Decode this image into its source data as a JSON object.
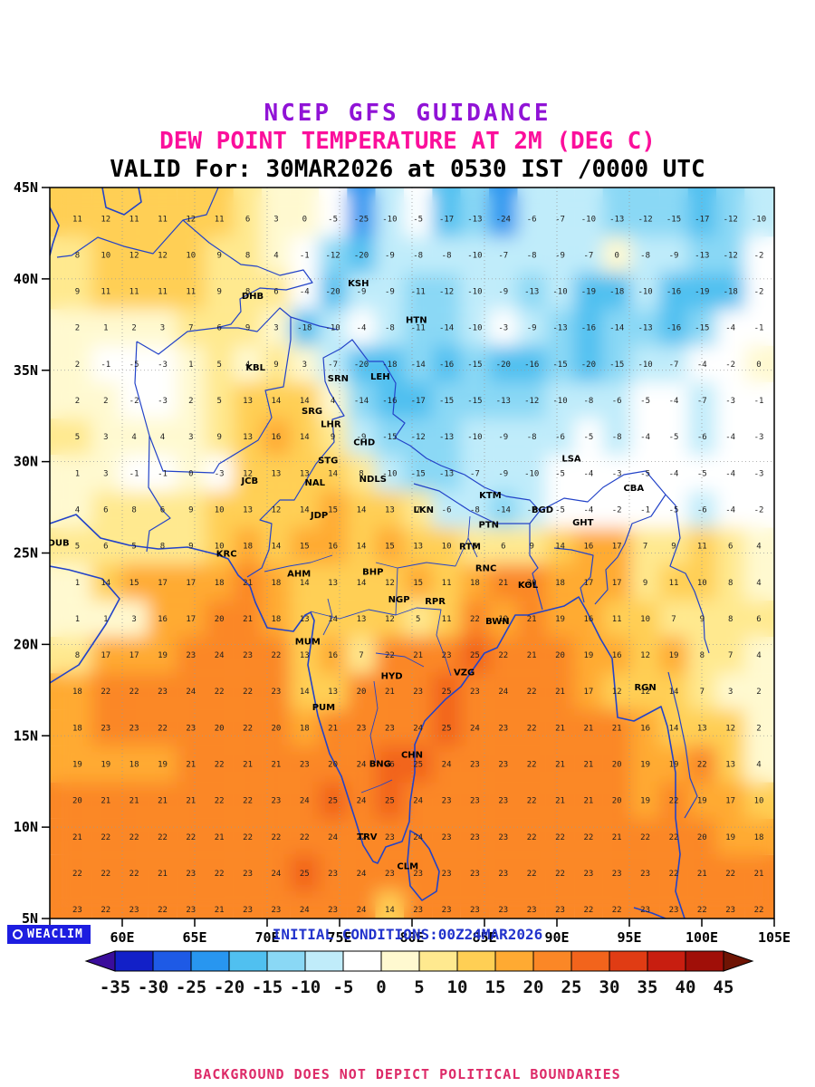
{
  "titles": {
    "line1": "NCEP GFS GUIDANCE",
    "line1_color": "#9013d6",
    "line2": "DEW POINT TEMPERATURE AT 2M (DEG C)",
    "line2_color": "#fb0f9b",
    "line3": "VALID For: 30MAR2026 at 0530 IST /0000 UTC",
    "line3_color": "#000000"
  },
  "footer": {
    "logo_text": "WEACLIM",
    "logo_bg": "#1d1de0",
    "initial_conditions": "INITIAL CONDITIONS:00Z24MAR2026",
    "initial_conditions_color": "#2233cc",
    "disclaimer": "BACKGROUND DOES NOT DEPICT POLITICAL BOUNDARIES",
    "disclaimer_color": "#dd2a68"
  },
  "axes": {
    "lon_ticks": [
      "55E",
      "60E",
      "65E",
      "70E",
      "75E",
      "80E",
      "85E",
      "90E",
      "95E",
      "100E",
      "105E"
    ],
    "lat_ticks": [
      "45N",
      "40N",
      "35N",
      "30N",
      "25N",
      "20N",
      "15N",
      "10N",
      "5N"
    ]
  },
  "colorbar": {
    "tick_labels": [
      "-35",
      "-30",
      "-25",
      "-20",
      "-15",
      "-10",
      "-5",
      "0",
      "5",
      "10",
      "15",
      "20",
      "25",
      "30",
      "35",
      "40",
      "45"
    ],
    "segment_colors": [
      "#1220c8",
      "#1e5ae6",
      "#2896f0",
      "#50c0f0",
      "#8ad8f5",
      "#c0ecfa",
      "#ffffff",
      "#fff9d0",
      "#ffe98f",
      "#ffcf54",
      "#ffaa32",
      "#fb8726",
      "#f2641c",
      "#e03c14",
      "#c81e10",
      "#a00f08"
    ],
    "left_arrow_color": "#3a0d9b",
    "right_arrow_color": "#6f1404"
  },
  "map": {
    "grid": {
      "lon_start": 56.9,
      "lon_step": 1.96,
      "lat_start": 43.3,
      "lat_step": -1.99,
      "values": [
        [
          11,
          12,
          11,
          11,
          12,
          11,
          6,
          3,
          0,
          -5,
          -25,
          -10,
          -5,
          -17,
          -13,
          -24,
          -6,
          -7,
          -10,
          -13,
          -12,
          -15,
          -17,
          -12,
          -10
        ],
        [
          8,
          10,
          12,
          12,
          10,
          9,
          8,
          4,
          -1,
          -12,
          -20,
          -9,
          -8,
          -8,
          -10,
          -7,
          -8,
          -9,
          -7,
          0,
          -8,
          -9,
          -13,
          -12,
          -2
        ],
        [
          9,
          11,
          11,
          11,
          11,
          9,
          8,
          6,
          -4,
          -20,
          -9,
          -9,
          -11,
          -12,
          -10,
          -9,
          -13,
          -10,
          -19,
          -18,
          -10,
          -16,
          -19,
          -18,
          -2
        ],
        [
          2,
          1,
          2,
          3,
          7,
          6,
          9,
          3,
          -18,
          -10,
          -4,
          -8,
          -11,
          -14,
          -10,
          -3,
          -9,
          -13,
          -16,
          -14,
          -13,
          -16,
          -15,
          -4,
          -1
        ],
        [
          2,
          -1,
          -5,
          -3,
          1,
          5,
          4,
          9,
          3,
          -7,
          -20,
          -18,
          -14,
          -16,
          -15,
          -20,
          -16,
          -15,
          -20,
          -15,
          -10,
          -7,
          -4,
          -2,
          0
        ],
        [
          2,
          2,
          -2,
          -3,
          2,
          5,
          13,
          14,
          14,
          4,
          -14,
          -16,
          -17,
          -15,
          -15,
          -13,
          -12,
          -10,
          -8,
          -6,
          -5,
          -4,
          -7,
          -3,
          -1
        ],
        [
          5,
          3,
          4,
          4,
          3,
          9,
          13,
          16,
          14,
          9,
          -9,
          -15,
          -12,
          -13,
          -10,
          -9,
          -8,
          -6,
          -5,
          -8,
          -4,
          -5,
          -6,
          -4,
          -3
        ],
        [
          1,
          3,
          -1,
          -1,
          0,
          -3,
          12,
          13,
          13,
          14,
          8,
          -10,
          -15,
          -13,
          -7,
          -9,
          -10,
          -5,
          -4,
          -3,
          -5,
          -4,
          -5,
          -4,
          -3
        ],
        [
          4,
          6,
          8,
          6,
          9,
          10,
          13,
          12,
          14,
          15,
          14,
          13,
          7,
          -6,
          -8,
          -14,
          -7,
          -5,
          -4,
          -2,
          -1,
          -5,
          -6,
          -4,
          -2
        ],
        [
          5,
          6,
          5,
          8,
          9,
          10,
          18,
          14,
          15,
          16,
          14,
          15,
          13,
          10,
          8,
          6,
          9,
          14,
          16,
          17,
          7,
          9,
          11,
          6,
          4
        ],
        [
          1,
          14,
          15,
          17,
          17,
          18,
          21,
          18,
          14,
          13,
          14,
          12,
          15,
          11,
          18,
          21,
          20,
          18,
          17,
          17,
          9,
          11,
          10,
          8,
          4
        ],
        [
          1,
          1,
          3,
          16,
          17,
          20,
          21,
          18,
          13,
          14,
          13,
          12,
          5,
          11,
          22,
          19,
          21,
          19,
          16,
          11,
          10,
          7,
          9,
          8,
          6
        ],
        [
          8,
          17,
          17,
          19,
          23,
          24,
          23,
          22,
          13,
          16,
          7,
          22,
          21,
          23,
          25,
          22,
          21,
          20,
          19,
          16,
          12,
          19,
          8,
          7,
          4
        ],
        [
          18,
          22,
          22,
          23,
          24,
          22,
          22,
          23,
          14,
          13,
          20,
          21,
          23,
          25,
          23,
          24,
          22,
          21,
          17,
          12,
          12,
          14,
          7,
          3,
          2
        ],
        [
          18,
          23,
          23,
          22,
          23,
          20,
          22,
          20,
          18,
          21,
          23,
          23,
          24,
          25,
          24,
          23,
          22,
          21,
          21,
          21,
          16,
          14,
          13,
          12,
          2
        ],
        [
          19,
          19,
          18,
          19,
          21,
          22,
          21,
          21,
          23,
          20,
          24,
          26,
          25,
          24,
          23,
          23,
          22,
          21,
          21,
          20,
          19,
          19,
          22,
          13,
          4
        ],
        [
          20,
          21,
          21,
          21,
          21,
          22,
          22,
          23,
          24,
          25,
          24,
          25,
          24,
          23,
          23,
          23,
          22,
          21,
          21,
          20,
          19,
          22,
          19,
          17,
          10
        ],
        [
          21,
          22,
          22,
          22,
          22,
          21,
          22,
          22,
          22,
          24,
          22,
          23,
          24,
          23,
          23,
          23,
          22,
          22,
          22,
          21,
          22,
          22,
          20,
          19,
          18
        ],
        [
          22,
          22,
          22,
          21,
          23,
          22,
          23,
          24,
          25,
          23,
          24,
          23,
          23,
          23,
          23,
          23,
          22,
          22,
          23,
          23,
          23,
          22,
          21,
          22,
          21
        ],
        [
          23,
          22,
          23,
          22,
          23,
          21,
          23,
          23,
          24,
          23,
          24,
          14,
          23,
          23,
          23,
          23,
          23,
          23,
          22,
          22,
          23,
          23,
          22,
          23,
          22
        ]
      ]
    },
    "cities": [
      {
        "code": "DHB",
        "lon": 69.0,
        "lat": 38.9
      },
      {
        "code": "KSH",
        "lon": 76.3,
        "lat": 39.6
      },
      {
        "code": "HTN",
        "lon": 80.3,
        "lat": 37.6
      },
      {
        "code": "KBL",
        "lon": 69.2,
        "lat": 35.0
      },
      {
        "code": "SRN",
        "lon": 74.9,
        "lat": 34.4
      },
      {
        "code": "LEH",
        "lon": 77.8,
        "lat": 34.5
      },
      {
        "code": "SRG",
        "lon": 73.1,
        "lat": 32.6
      },
      {
        "code": "LHR",
        "lon": 74.4,
        "lat": 31.9
      },
      {
        "code": "CHD",
        "lon": 76.7,
        "lat": 30.9
      },
      {
        "code": "STG",
        "lon": 74.2,
        "lat": 29.9
      },
      {
        "code": "NDLS",
        "lon": 77.3,
        "lat": 28.9
      },
      {
        "code": "JCB",
        "lon": 68.8,
        "lat": 28.8
      },
      {
        "code": "NAL",
        "lon": 73.3,
        "lat": 28.7
      },
      {
        "code": "KTM",
        "lon": 85.4,
        "lat": 28.0
      },
      {
        "code": "LSA",
        "lon": 91.0,
        "lat": 30.0
      },
      {
        "code": "CBA",
        "lon": 95.3,
        "lat": 28.4
      },
      {
        "code": "GHT",
        "lon": 91.8,
        "lat": 26.5
      },
      {
        "code": "BGD",
        "lon": 89.0,
        "lat": 27.2
      },
      {
        "code": "LKN",
        "lon": 80.8,
        "lat": 27.2
      },
      {
        "code": "JDP",
        "lon": 73.6,
        "lat": 26.9
      },
      {
        "code": "PTN",
        "lon": 85.3,
        "lat": 26.4
      },
      {
        "code": "DUB",
        "lon": 55.6,
        "lat": 25.4
      },
      {
        "code": "KRC",
        "lon": 67.2,
        "lat": 24.8
      },
      {
        "code": "RTM",
        "lon": 84.0,
        "lat": 25.2
      },
      {
        "code": "AHM",
        "lon": 72.2,
        "lat": 23.7
      },
      {
        "code": "BHP",
        "lon": 77.3,
        "lat": 23.8
      },
      {
        "code": "RNC",
        "lon": 85.1,
        "lat": 24.0
      },
      {
        "code": "KOL",
        "lon": 88.0,
        "lat": 23.1
      },
      {
        "code": "NGP",
        "lon": 79.1,
        "lat": 22.3
      },
      {
        "code": "RPR",
        "lon": 81.6,
        "lat": 22.2
      },
      {
        "code": "BWN",
        "lon": 85.9,
        "lat": 21.1
      },
      {
        "code": "MUM",
        "lon": 72.8,
        "lat": 20.0
      },
      {
        "code": "HYD",
        "lon": 78.6,
        "lat": 18.1
      },
      {
        "code": "VZG",
        "lon": 83.6,
        "lat": 18.3
      },
      {
        "code": "PUM",
        "lon": 73.9,
        "lat": 16.4
      },
      {
        "code": "RGN",
        "lon": 96.1,
        "lat": 17.5
      },
      {
        "code": "CHN",
        "lon": 80.0,
        "lat": 13.8
      },
      {
        "code": "BNG",
        "lon": 77.8,
        "lat": 13.3
      },
      {
        "code": "TRV",
        "lon": 76.9,
        "lat": 9.3
      },
      {
        "code": "CLM",
        "lon": 79.7,
        "lat": 7.7
      }
    ]
  }
}
